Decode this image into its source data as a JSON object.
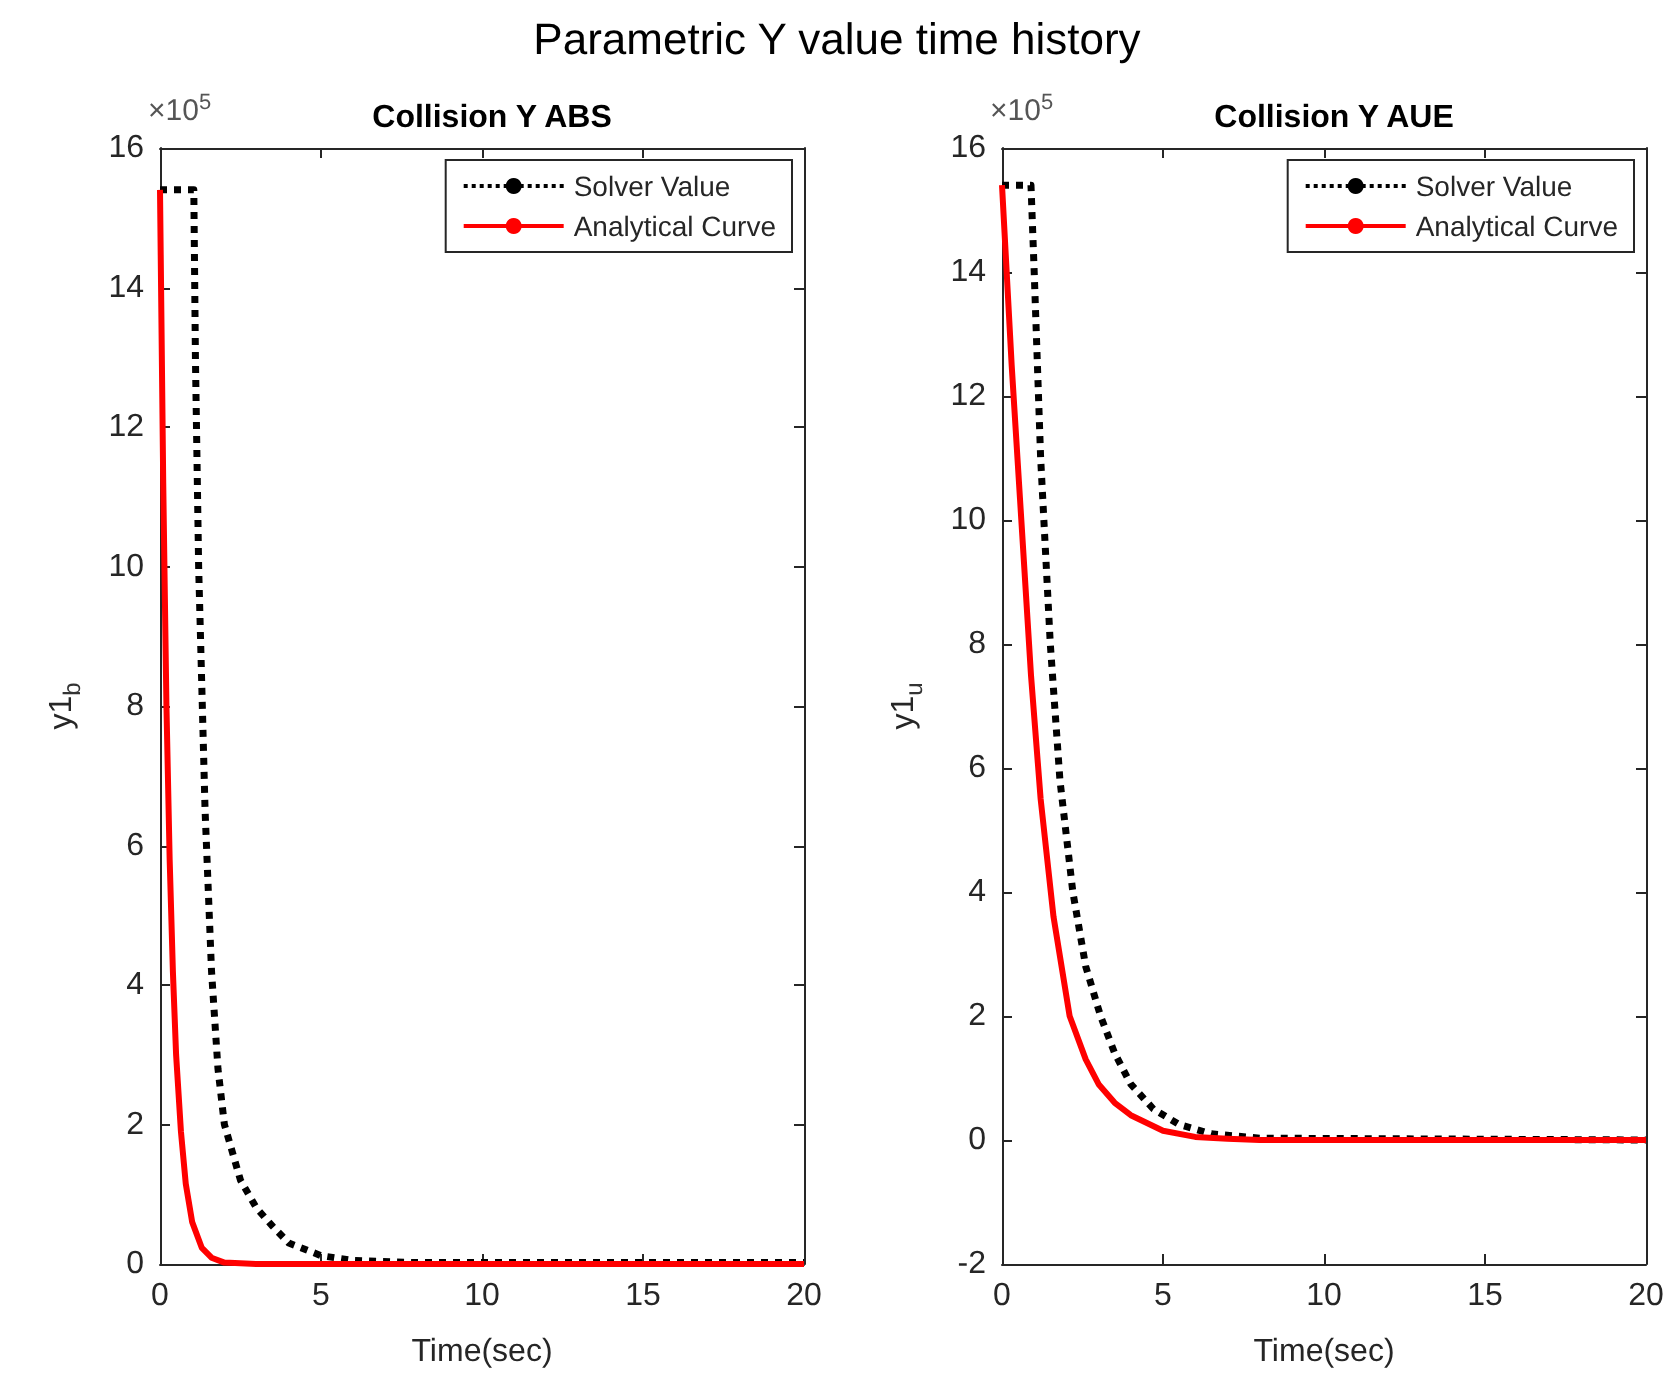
{
  "chart_data": [
    {
      "type": "line",
      "title": "Collision Y ABS",
      "xlabel": "Time(sec)",
      "ylabel": "y1$_{b}$",
      "annotations": [
        "Parametric Y value time history",
        "×10$^{5}$"
      ],
      "xlim": [
        0,
        20
      ],
      "xticks": [
        0,
        5,
        10,
        15,
        20
      ],
      "ylim": [
        0,
        16
      ],
      "yticks": [
        0,
        2,
        4,
        6,
        8,
        10,
        12,
        14,
        16
      ],
      "legend": "top right",
      "grid": false,
      "series": [
        {
          "name": "Solver Value",
          "color": "#000000",
          "line_style": "dotted",
          "x": [
            0,
            1.05,
            1.1,
            1.2,
            1.4,
            1.6,
            1.8,
            2,
            2.5,
            3,
            3.5,
            4,
            5,
            6,
            8,
            20
          ],
          "values": [
            15.4,
            15.4,
            13,
            10,
            6.5,
            4.2,
            2.8,
            2,
            1.2,
            0.8,
            0.54,
            0.3,
            0.12,
            0.05,
            0.02,
            0.02
          ]
        },
        {
          "name": "Analytical Curve",
          "color": "#ff0000",
          "line_style": "solid",
          "x": [
            0,
            0.1,
            0.2,
            0.3,
            0.4,
            0.5,
            0.65,
            0.8,
            1,
            1.3,
            1.6,
            2,
            3,
            20
          ],
          "values": [
            15.4,
            11.2,
            8,
            5.8,
            4.2,
            3,
            1.9,
            1.15,
            0.6,
            0.23,
            0.09,
            0.02,
            0,
            0
          ]
        }
      ]
    },
    {
      "type": "line",
      "title": "Collision Y AUE",
      "xlabel": "Time(sec)",
      "ylabel": "y1$_{u}$",
      "annotations": [
        "×10$^{5}$"
      ],
      "xlim": [
        0,
        20
      ],
      "xticks": [
        0,
        5,
        10,
        15,
        20
      ],
      "ylim": [
        -2,
        16
      ],
      "yticks": [
        -2,
        0,
        2,
        4,
        6,
        8,
        10,
        12,
        14,
        16
      ],
      "legend": "top right",
      "grid": false,
      "series": [
        {
          "name": "Solver Value",
          "color": "#000000",
          "line_style": "dotted",
          "x": [
            0,
            0.9,
            1,
            1.2,
            1.5,
            1.8,
            2.2,
            2.6,
            3.06,
            3.5,
            4,
            4.7,
            5.5,
            6.5,
            8,
            20
          ],
          "values": [
            15.4,
            15.4,
            14,
            11,
            8,
            5.8,
            4,
            2.8,
            2,
            1.4,
            0.9,
            0.5,
            0.25,
            0.1,
            0.03,
            0
          ]
        },
        {
          "name": "Analytical Curve",
          "color": "#ff0000",
          "line_style": "solid",
          "x": [
            0,
            0.3,
            0.6,
            0.9,
            1.2,
            1.6,
            2.1,
            2.6,
            3,
            3.5,
            4,
            5,
            6,
            7,
            8,
            20
          ],
          "values": [
            15.4,
            12.5,
            10,
            7.5,
            5.5,
            3.6,
            2,
            1.3,
            0.9,
            0.6,
            0.4,
            0.15,
            0.05,
            0.02,
            0,
            0
          ]
        }
      ]
    }
  ]
}
